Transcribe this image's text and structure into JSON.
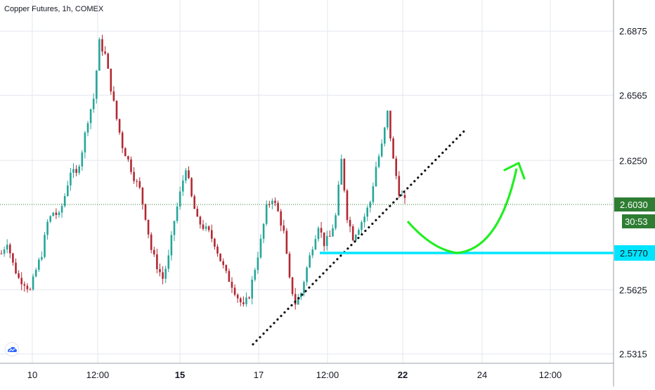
{
  "chart_title": "Copper Futures, 1h, COMEX",
  "colors": {
    "up": "#26a69a",
    "down": "#b22833",
    "grid": "#e4e7ee",
    "price_line": "#2e7d32",
    "support": "#00e5ff",
    "arrow": "#22ee22",
    "trendline": "#111111",
    "axis_text": "#131722"
  },
  "chart_data": {
    "type": "candlestick",
    "title": "Copper Futures, 1h, COMEX",
    "y_ticks": [
      "2.6875",
      "2.6565",
      "2.6250",
      "2.5625",
      "2.5315"
    ],
    "x_ticks": [
      "10",
      "12:00",
      "15",
      "17",
      "12:00",
      "22",
      "24",
      "12:00"
    ],
    "bold_x_ticks": [
      "15",
      "22"
    ],
    "ylim": [
      2.527,
      2.7025
    ],
    "grid": true,
    "current_price": "2.6030",
    "countdown": "30:53",
    "support_level": "2.5770",
    "series": [
      {
        "name": "price",
        "values": [
          2.58,
          2.586,
          2.575,
          2.568,
          2.566,
          2.562,
          2.572,
          2.58,
          2.595,
          2.6,
          2.598,
          2.608,
          2.62,
          2.618,
          2.63,
          2.645,
          2.655,
          2.682,
          2.676,
          2.66,
          2.645,
          2.632,
          2.625,
          2.617,
          2.611,
          2.598,
          2.582,
          2.574,
          2.568,
          2.578,
          2.596,
          2.609,
          2.622,
          2.607,
          2.596,
          2.593,
          2.59,
          2.585,
          2.577,
          2.57,
          2.565,
          2.559,
          2.554,
          2.56,
          2.573,
          2.586,
          2.602,
          2.607,
          2.6,
          2.59,
          2.567,
          2.556,
          2.561,
          2.573,
          2.584,
          2.594,
          2.585,
          2.588,
          2.598,
          2.625,
          2.598,
          2.588,
          2.593,
          2.598,
          2.605,
          2.622,
          2.632,
          2.648,
          2.625,
          2.61,
          2.605
        ]
      }
    ],
    "annotations": [
      "dotted-trendline",
      "support-line",
      "curved-arrow"
    ]
  }
}
